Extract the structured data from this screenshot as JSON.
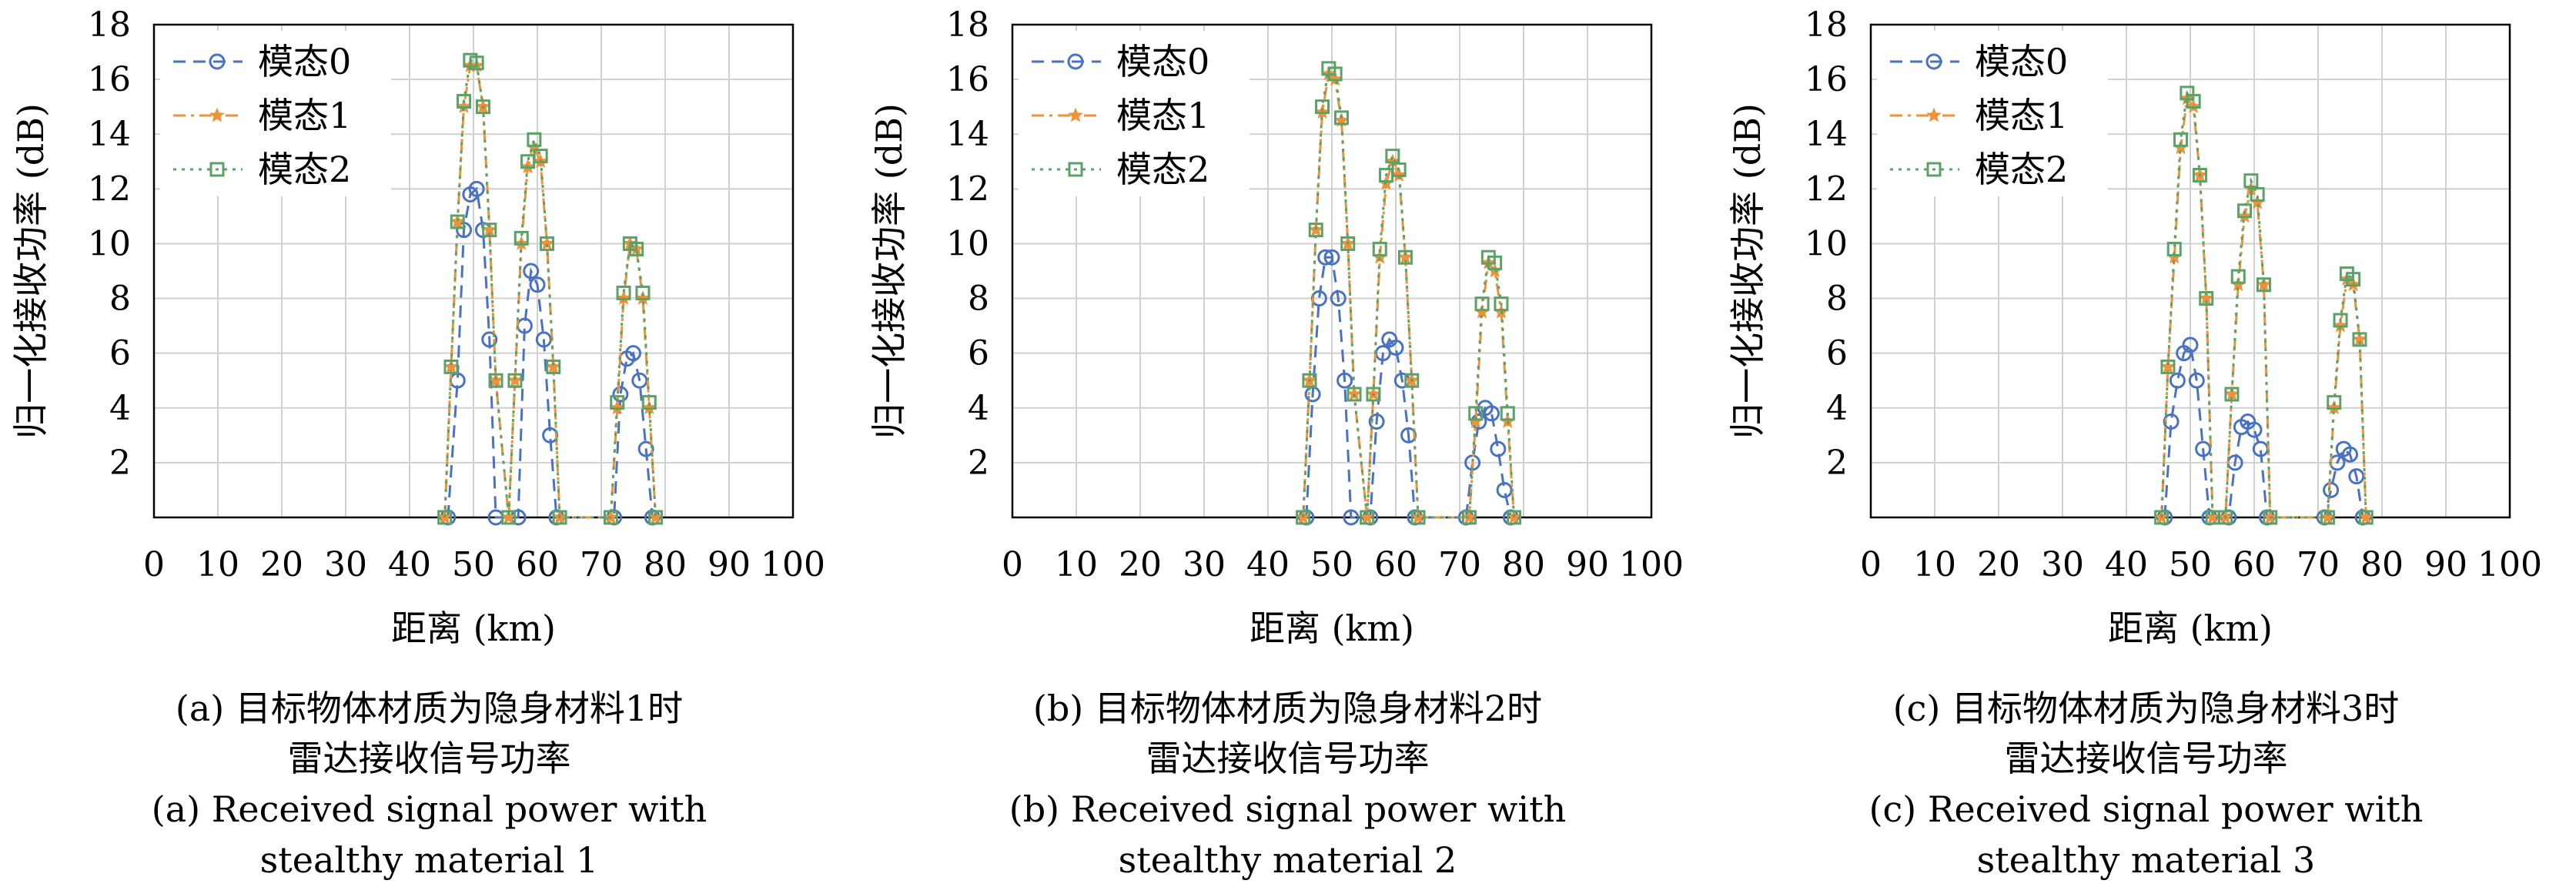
{
  "chart_data": [
    {
      "type": "line",
      "xlabel": "距离 (km)",
      "ylabel": "归一化接收功率 (dB)",
      "xlim": [
        0,
        100
      ],
      "ylim": [
        0,
        18
      ],
      "xticks": [
        "0",
        "10",
        "20",
        "30",
        "40",
        "50",
        "60",
        "70",
        "80",
        "90",
        "100"
      ],
      "yticks": [
        "2",
        "4",
        "6",
        "8",
        "10",
        "12",
        "14",
        "16",
        "18"
      ],
      "grid": true,
      "legend_position": "top-left",
      "caption_cn": [
        "(a) 目标物体材质为隐身材料1时",
        "雷达接收信号功率"
      ],
      "caption_en": [
        "(a) Received signal power with",
        "stealthy material 1"
      ],
      "series": [
        {
          "name": "模态0",
          "color": "#4a72c4",
          "marker": "circle",
          "dash": "dash",
          "x": [
            46.0,
            47.5,
            48.5,
            49.5,
            50.5,
            51.5,
            52.5,
            53.5,
            57.0,
            58.0,
            59.0,
            60.0,
            61.0,
            62.0,
            63.0,
            72.0,
            73.0,
            74.0,
            75.0,
            76.0,
            77.0,
            78.0
          ],
          "y": [
            0.0,
            5.0,
            10.5,
            11.8,
            12.0,
            10.5,
            6.5,
            0.0,
            0.0,
            7.0,
            9.0,
            8.5,
            6.5,
            3.0,
            0.0,
            0.0,
            4.5,
            5.8,
            6.0,
            5.0,
            2.5,
            0.0
          ]
        },
        {
          "name": "模态1",
          "color": "#f0923a",
          "marker": "star",
          "dash": "dashdot",
          "x": [
            45.5,
            46.5,
            47.5,
            48.5,
            49.5,
            50.5,
            51.5,
            52.5,
            53.5,
            55.5,
            56.5,
            57.5,
            58.5,
            59.5,
            60.5,
            61.5,
            62.5,
            63.5,
            71.5,
            72.5,
            73.5,
            74.5,
            75.5,
            76.5,
            77.5,
            78.5
          ],
          "y": [
            0.0,
            5.5,
            10.8,
            15.0,
            16.5,
            16.5,
            15.0,
            10.5,
            5.0,
            0.0,
            5.0,
            10.0,
            12.8,
            13.5,
            13.0,
            10.0,
            5.5,
            0.0,
            0.0,
            4.0,
            8.0,
            10.0,
            9.8,
            8.0,
            4.0,
            0.0
          ]
        },
        {
          "name": "模态2",
          "color": "#5aa266",
          "marker": "square",
          "dash": "dot",
          "x": [
            45.5,
            46.5,
            47.5,
            48.5,
            49.5,
            50.5,
            51.5,
            52.5,
            53.5,
            55.5,
            56.5,
            57.5,
            58.5,
            59.5,
            60.5,
            61.5,
            62.5,
            63.5,
            71.5,
            72.5,
            73.5,
            74.5,
            75.5,
            76.5,
            77.5,
            78.5
          ],
          "y": [
            0.0,
            5.5,
            10.8,
            15.2,
            16.7,
            16.6,
            15.0,
            10.5,
            5.0,
            0.0,
            5.0,
            10.2,
            13.0,
            13.8,
            13.2,
            10.0,
            5.5,
            0.0,
            0.0,
            4.2,
            8.2,
            10.0,
            9.8,
            8.2,
            4.2,
            0.0
          ]
        }
      ]
    },
    {
      "type": "line",
      "xlabel": "距离 (km)",
      "ylabel": "归一化接收功率 (dB)",
      "xlim": [
        0,
        100
      ],
      "ylim": [
        0,
        18
      ],
      "xticks": [
        "0",
        "10",
        "20",
        "30",
        "40",
        "50",
        "60",
        "70",
        "80",
        "90",
        "100"
      ],
      "yticks": [
        "2",
        "4",
        "6",
        "8",
        "10",
        "12",
        "14",
        "16",
        "18"
      ],
      "grid": true,
      "legend_position": "top-left",
      "caption_cn": [
        "(b) 目标物体材质为隐身材料2时",
        "雷达接收信号功率"
      ],
      "caption_en": [
        "(b) Received signal power with",
        "stealthy material 2"
      ],
      "series": [
        {
          "name": "模态0",
          "color": "#4a72c4",
          "marker": "circle",
          "dash": "dash",
          "x": [
            46.0,
            47.0,
            48.0,
            49.0,
            50.0,
            51.0,
            52.0,
            53.0,
            56.0,
            57.0,
            58.0,
            59.0,
            60.0,
            61.0,
            62.0,
            63.0,
            71.0,
            72.0,
            73.0,
            74.0,
            75.0,
            76.0,
            77.0,
            78.0
          ],
          "y": [
            0.0,
            4.5,
            8.0,
            9.5,
            9.5,
            8.0,
            5.0,
            0.0,
            0.0,
            3.5,
            6.0,
            6.5,
            6.2,
            5.0,
            3.0,
            0.0,
            0.0,
            2.0,
            3.5,
            4.0,
            3.8,
            2.5,
            1.0,
            0.0
          ]
        },
        {
          "name": "模态1",
          "color": "#f0923a",
          "marker": "star",
          "dash": "dashdot",
          "x": [
            45.5,
            46.5,
            47.5,
            48.5,
            49.5,
            50.5,
            51.5,
            52.5,
            53.5,
            55.5,
            56.5,
            57.5,
            58.5,
            59.5,
            60.5,
            61.5,
            62.5,
            63.5,
            71.5,
            72.5,
            73.5,
            74.5,
            75.5,
            76.5,
            77.5,
            78.5
          ],
          "y": [
            0.0,
            5.0,
            10.5,
            14.8,
            16.2,
            16.0,
            14.5,
            10.0,
            4.5,
            0.0,
            4.5,
            9.5,
            12.2,
            13.0,
            12.5,
            9.5,
            5.0,
            0.0,
            0.0,
            3.5,
            7.5,
            9.3,
            9.0,
            7.5,
            3.5,
            0.0
          ]
        },
        {
          "name": "模态2",
          "color": "#5aa266",
          "marker": "square",
          "dash": "dot",
          "x": [
            45.5,
            46.5,
            47.5,
            48.5,
            49.5,
            50.5,
            51.5,
            52.5,
            53.5,
            55.5,
            56.5,
            57.5,
            58.5,
            59.5,
            60.5,
            61.5,
            62.5,
            63.5,
            71.5,
            72.5,
            73.5,
            74.5,
            75.5,
            76.5,
            77.5,
            78.5
          ],
          "y": [
            0.0,
            5.0,
            10.5,
            15.0,
            16.4,
            16.2,
            14.6,
            10.0,
            4.5,
            0.0,
            4.5,
            9.8,
            12.5,
            13.2,
            12.7,
            9.5,
            5.0,
            0.0,
            0.0,
            3.8,
            7.8,
            9.5,
            9.3,
            7.8,
            3.8,
            0.0
          ]
        }
      ]
    },
    {
      "type": "line",
      "xlabel": "距离 (km)",
      "ylabel": "归一化接收功率 (dB)",
      "xlim": [
        0,
        100
      ],
      "ylim": [
        0,
        18
      ],
      "xticks": [
        "0",
        "10",
        "20",
        "30",
        "40",
        "50",
        "60",
        "70",
        "80",
        "90",
        "100"
      ],
      "yticks": [
        "2",
        "4",
        "6",
        "8",
        "10",
        "12",
        "14",
        "16",
        "18"
      ],
      "grid": true,
      "legend_position": "top-left",
      "caption_cn": [
        "(c) 目标物体材质为隐身材料3时",
        "雷达接收信号功率"
      ],
      "caption_en": [
        "(c) Received signal power with",
        "stealthy material 3"
      ],
      "series": [
        {
          "name": "模态0",
          "color": "#4a72c4",
          "marker": "circle",
          "dash": "dash",
          "x": [
            46.0,
            47.0,
            48.0,
            49.0,
            50.0,
            51.0,
            52.0,
            53.0,
            56.0,
            57.0,
            58.0,
            59.0,
            60.0,
            61.0,
            62.0,
            71.0,
            72.0,
            73.0,
            74.0,
            75.0,
            76.0,
            77.0
          ],
          "y": [
            0.0,
            3.5,
            5.0,
            6.0,
            6.3,
            5.0,
            2.5,
            0.0,
            0.0,
            2.0,
            3.3,
            3.5,
            3.2,
            2.5,
            0.0,
            0.0,
            1.0,
            2.0,
            2.5,
            2.3,
            1.5,
            0.0
          ]
        },
        {
          "name": "模态1",
          "color": "#f0923a",
          "marker": "star",
          "dash": "dashdot",
          "x": [
            45.5,
            46.5,
            47.5,
            48.5,
            49.5,
            50.5,
            51.5,
            52.5,
            53.5,
            55.5,
            56.5,
            57.5,
            58.5,
            59.5,
            60.5,
            61.5,
            62.5,
            71.5,
            72.5,
            73.5,
            74.5,
            75.5,
            76.5,
            77.5
          ],
          "y": [
            0.0,
            5.5,
            9.5,
            13.5,
            15.3,
            15.0,
            12.5,
            8.0,
            0.0,
            0.0,
            4.5,
            8.5,
            11.0,
            12.0,
            11.5,
            8.5,
            0.0,
            0.0,
            4.0,
            7.0,
            8.7,
            8.5,
            6.5,
            0.0
          ]
        },
        {
          "name": "模态2",
          "color": "#5aa266",
          "marker": "square",
          "dash": "dot",
          "x": [
            45.5,
            46.5,
            47.5,
            48.5,
            49.5,
            50.5,
            51.5,
            52.5,
            53.5,
            55.5,
            56.5,
            57.5,
            58.5,
            59.5,
            60.5,
            61.5,
            62.5,
            71.5,
            72.5,
            73.5,
            74.5,
            75.5,
            76.5,
            77.5
          ],
          "y": [
            0.0,
            5.5,
            9.8,
            13.8,
            15.5,
            15.2,
            12.5,
            8.0,
            0.0,
            0.0,
            4.5,
            8.8,
            11.2,
            12.3,
            11.8,
            8.5,
            0.0,
            0.0,
            4.2,
            7.2,
            8.9,
            8.7,
            6.5,
            0.0
          ]
        }
      ]
    }
  ]
}
